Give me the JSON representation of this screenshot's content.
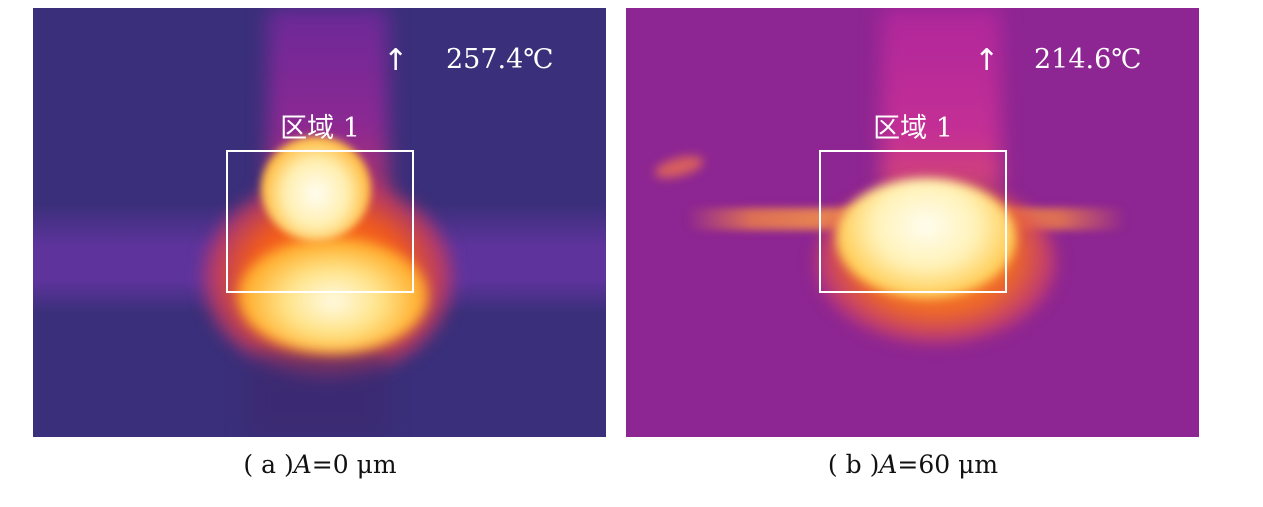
{
  "panels": [
    {
      "id": "a",
      "max_temperature": "257.4℃",
      "arrow_symbol": "↑",
      "region_label": "区域 1",
      "caption": {
        "prefix": "( a )",
        "var": "A",
        "rest": "=0 μm"
      },
      "colors": {
        "background": "#3a2f7a",
        "hot": "#fffbe6"
      }
    },
    {
      "id": "b",
      "max_temperature": "214.6℃",
      "arrow_symbol": "↑",
      "region_label": "区域 1",
      "caption": {
        "prefix": "( b )",
        "var": "A",
        "rest": "=60 μm"
      },
      "colors": {
        "background": "#8d2592",
        "hot": "#fffdf0"
      }
    }
  ]
}
